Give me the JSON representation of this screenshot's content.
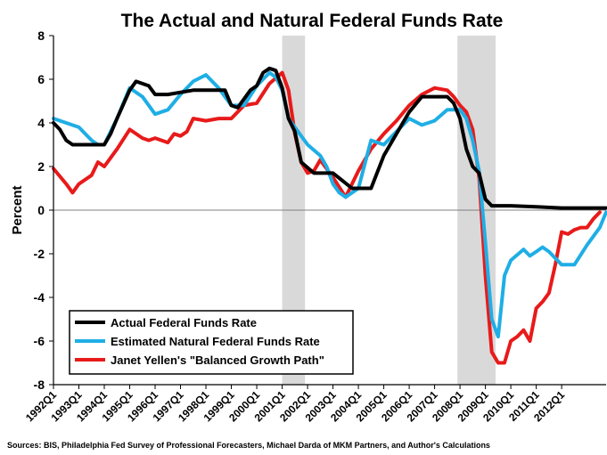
{
  "chart_data": {
    "type": "line",
    "title": "The Actual and Natural  Federal Funds Rate",
    "ylabel": "Percent",
    "xlabel": "",
    "ylim": [
      -8,
      8
    ],
    "yticks": [
      -8,
      -6,
      -4,
      -2,
      0,
      2,
      4,
      6,
      8
    ],
    "xlim": [
      1992.0,
      2013.75
    ],
    "xtick_labels": [
      "1992Q1",
      "1993Q1",
      "1994Q1",
      "1995Q1",
      "1996Q1",
      "1997Q1",
      "1998Q1",
      "1999Q1",
      "2000Q1",
      "2001Q1",
      "2002Q1",
      "2003Q1",
      "2004Q1",
      "2005Q1",
      "2006Q1",
      "2007Q1",
      "2008Q1",
      "2009Q1",
      "2010Q1",
      "2011Q1",
      "2012Q1"
    ],
    "recessions": [
      [
        2001.0,
        2001.9
      ],
      [
        2007.9,
        2009.4
      ]
    ],
    "legend": {
      "placement": "bottom-left"
    },
    "source": "Sources: BIS, Philadelphia Fed Survey of  Professional Forecasters,  Michael Darda of MKM Partners, and Author's Calculations",
    "series": [
      {
        "name": "Actual Federal Funds Rate",
        "color": "#000000",
        "x": [
          1992.0,
          1992.25,
          1992.5,
          1992.75,
          1993.25,
          1994.0,
          1994.25,
          1994.5,
          1995.0,
          1995.25,
          1995.75,
          1996.0,
          1996.5,
          1997.5,
          1998.75,
          1999.0,
          1999.25,
          1999.75,
          2000.0,
          2000.25,
          2000.5,
          2000.75,
          2001.0,
          2001.25,
          2001.5,
          2001.75,
          2002.25,
          2003.0,
          2003.75,
          2004.25,
          2004.5,
          2005.0,
          2005.5,
          2006.0,
          2006.5,
          2007.5,
          2007.75,
          2008.0,
          2008.25,
          2008.5,
          2008.75,
          2009.0,
          2009.25,
          2010.0,
          2011.0,
          2012.0,
          2013.0,
          2013.75
        ],
        "y": [
          4.0,
          3.7,
          3.2,
          3.0,
          3.0,
          3.0,
          3.5,
          4.2,
          5.5,
          5.9,
          5.7,
          5.3,
          5.3,
          5.5,
          5.5,
          4.8,
          4.7,
          5.5,
          5.7,
          6.3,
          6.5,
          6.4,
          5.6,
          4.2,
          3.6,
          2.2,
          1.7,
          1.7,
          1.0,
          1.0,
          1.0,
          2.5,
          3.5,
          4.5,
          5.2,
          5.2,
          4.9,
          4.2,
          2.8,
          2.0,
          1.7,
          0.5,
          0.2,
          0.2,
          0.15,
          0.1,
          0.1,
          0.1
        ]
      },
      {
        "name": "Estimated  Natural Federal Funds Rate",
        "color": "#1faee5",
        "x": [
          1992.0,
          1993.0,
          1993.25,
          1993.5,
          1993.75,
          1994.0,
          1994.5,
          1995.0,
          1995.5,
          1996.0,
          1996.5,
          1997.0,
          1997.5,
          1998.0,
          1998.5,
          1999.0,
          1999.5,
          2000.0,
          2000.5,
          2000.75,
          2001.0,
          2001.25,
          2001.5,
          2002.0,
          2002.5,
          2002.75,
          2003.0,
          2003.25,
          2003.5,
          2004.0,
          2004.5,
          2005.0,
          2005.5,
          2006.0,
          2006.5,
          2007.0,
          2007.5,
          2008.0,
          2008.25,
          2008.5,
          2008.75,
          2009.0,
          2009.25,
          2009.5,
          2009.75,
          2010.0,
          2010.5,
          2010.75,
          2011.0,
          2011.25,
          2011.5,
          2012.0,
          2012.5,
          2013.0,
          2013.5,
          2013.75
        ],
        "y": [
          4.2,
          3.8,
          3.5,
          3.2,
          3.0,
          3.0,
          4.2,
          5.6,
          5.2,
          4.4,
          4.6,
          5.3,
          5.9,
          6.2,
          5.6,
          4.8,
          4.8,
          5.7,
          6.3,
          6.1,
          5.5,
          4.2,
          3.8,
          3.0,
          2.5,
          2.0,
          1.2,
          0.8,
          0.6,
          1.0,
          3.2,
          3.0,
          3.6,
          4.2,
          3.9,
          4.1,
          4.6,
          4.6,
          4.2,
          3.2,
          1.8,
          -1.5,
          -5.0,
          -5.8,
          -3.0,
          -2.3,
          -1.8,
          -2.1,
          -1.9,
          -1.7,
          -1.9,
          -2.5,
          -2.5,
          -1.6,
          -0.8,
          -0.1
        ]
      },
      {
        "name": "Janet Yellen's  \"Balanced Growth Path\"",
        "color": "#e81a1a",
        "x": [
          1992.0,
          1992.5,
          1992.75,
          1993.0,
          1993.5,
          1993.75,
          1994.0,
          1994.5,
          1995.0,
          1995.5,
          1995.75,
          1996.0,
          1996.5,
          1996.75,
          1997.0,
          1997.25,
          1997.5,
          1998.0,
          1998.5,
          1999.0,
          1999.5,
          2000.0,
          2000.5,
          2001.0,
          2001.25,
          2001.5,
          2001.75,
          2002.0,
          2002.25,
          2002.5,
          2003.0,
          2003.5,
          2004.0,
          2004.5,
          2005.0,
          2005.5,
          2006.0,
          2006.5,
          2007.0,
          2007.5,
          2007.75,
          2008.0,
          2008.25,
          2008.5,
          2008.75,
          2009.0,
          2009.25,
          2009.5,
          2009.75,
          2010.0,
          2010.25,
          2010.5,
          2010.75,
          2011.0,
          2011.25,
          2011.5,
          2011.75,
          2012.0,
          2012.25,
          2012.5,
          2012.75,
          2013.0,
          2013.25,
          2013.5
        ],
        "y": [
          1.9,
          1.2,
          0.8,
          1.2,
          1.6,
          2.2,
          2.0,
          2.8,
          3.7,
          3.3,
          3.2,
          3.3,
          3.1,
          3.5,
          3.4,
          3.6,
          4.2,
          4.1,
          4.2,
          4.2,
          4.8,
          4.9,
          5.8,
          6.3,
          5.5,
          3.5,
          2.2,
          1.7,
          1.8,
          2.3,
          1.5,
          0.6,
          1.8,
          2.8,
          3.5,
          4.1,
          4.8,
          5.3,
          5.6,
          5.5,
          5.2,
          4.8,
          4.5,
          3.7,
          1.5,
          -3.0,
          -6.5,
          -7.0,
          -7.0,
          -6.0,
          -5.8,
          -5.5,
          -6.0,
          -4.5,
          -4.2,
          -3.8,
          -2.5,
          -1.0,
          -1.1,
          -0.9,
          -0.8,
          -0.8,
          -0.4,
          -0.1
        ]
      }
    ]
  }
}
